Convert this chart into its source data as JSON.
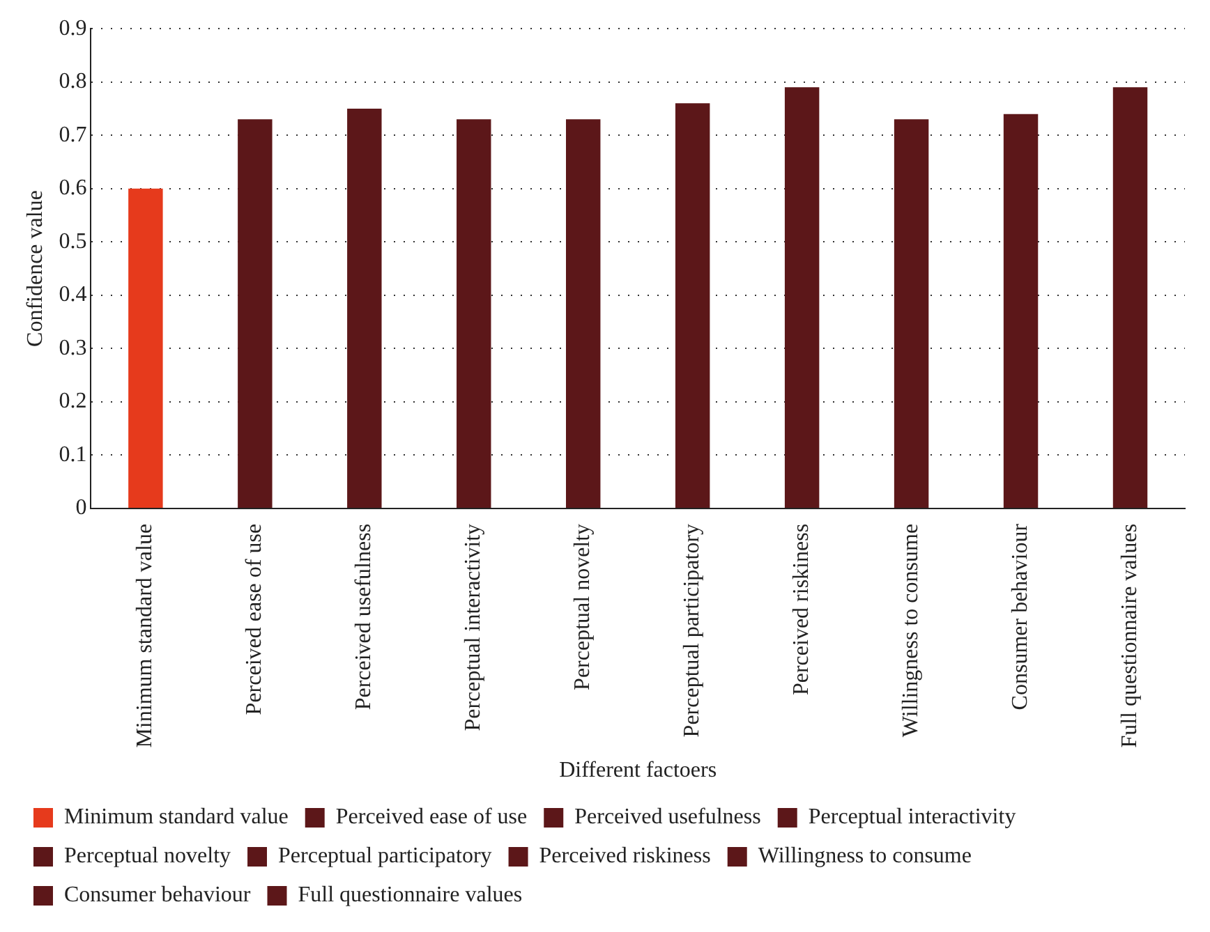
{
  "chart_data": {
    "type": "bar",
    "xlabel": "Different factoers",
    "ylabel": "Confidence value",
    "categories": [
      "Minimum standard value",
      "Perceived ease of use",
      "Perceived usefulness",
      "Perceptual interactivity",
      "Perceptual novelty",
      "Perceptual participatory",
      "Perceived riskiness",
      "Willingness to consume",
      "Consumer behaviour",
      "Full questionnaire values"
    ],
    "series": [
      {
        "name": "Minimum standard value",
        "color": "#e63a1c",
        "values": [
          0.6,
          null,
          null,
          null,
          null,
          null,
          null,
          null,
          null,
          null
        ]
      },
      {
        "name": "Perceived ease of use",
        "color": "#5c1719",
        "values": [
          null,
          0.73,
          null,
          null,
          null,
          null,
          null,
          null,
          null,
          null
        ]
      },
      {
        "name": "Perceived usefulness",
        "color": "#5c1719",
        "values": [
          null,
          null,
          0.75,
          null,
          null,
          null,
          null,
          null,
          null,
          null
        ]
      },
      {
        "name": "Perceptual interactivity",
        "color": "#5c1719",
        "values": [
          null,
          null,
          null,
          0.73,
          null,
          null,
          null,
          null,
          null,
          null
        ]
      },
      {
        "name": "Perceptual novelty",
        "color": "#5c1719",
        "values": [
          null,
          null,
          null,
          null,
          0.73,
          null,
          null,
          null,
          null,
          null
        ]
      },
      {
        "name": "Perceptual participatory",
        "color": "#5c1719",
        "values": [
          null,
          null,
          null,
          null,
          null,
          0.76,
          null,
          null,
          null,
          null
        ]
      },
      {
        "name": "Perceived riskiness",
        "color": "#5c1719",
        "values": [
          null,
          null,
          null,
          null,
          null,
          null,
          0.79,
          null,
          null,
          null
        ]
      },
      {
        "name": "Willingness to consume",
        "color": "#5c1719",
        "values": [
          null,
          null,
          null,
          null,
          null,
          null,
          null,
          0.73,
          null,
          null
        ]
      },
      {
        "name": "Consumer behaviour",
        "color": "#5c1719",
        "values": [
          null,
          null,
          null,
          null,
          null,
          null,
          null,
          null,
          0.74,
          null
        ]
      },
      {
        "name": "Full questionnaire values",
        "color": "#5c1719",
        "values": [
          null,
          null,
          null,
          null,
          null,
          null,
          null,
          null,
          null,
          0.79
        ]
      }
    ],
    "ylim": [
      0,
      0.9
    ],
    "yticks": [
      0,
      0.1,
      0.2,
      0.3,
      0.4,
      0.5,
      0.6,
      0.7,
      0.8,
      0.9
    ],
    "grid": "y",
    "legend": "bottom"
  }
}
